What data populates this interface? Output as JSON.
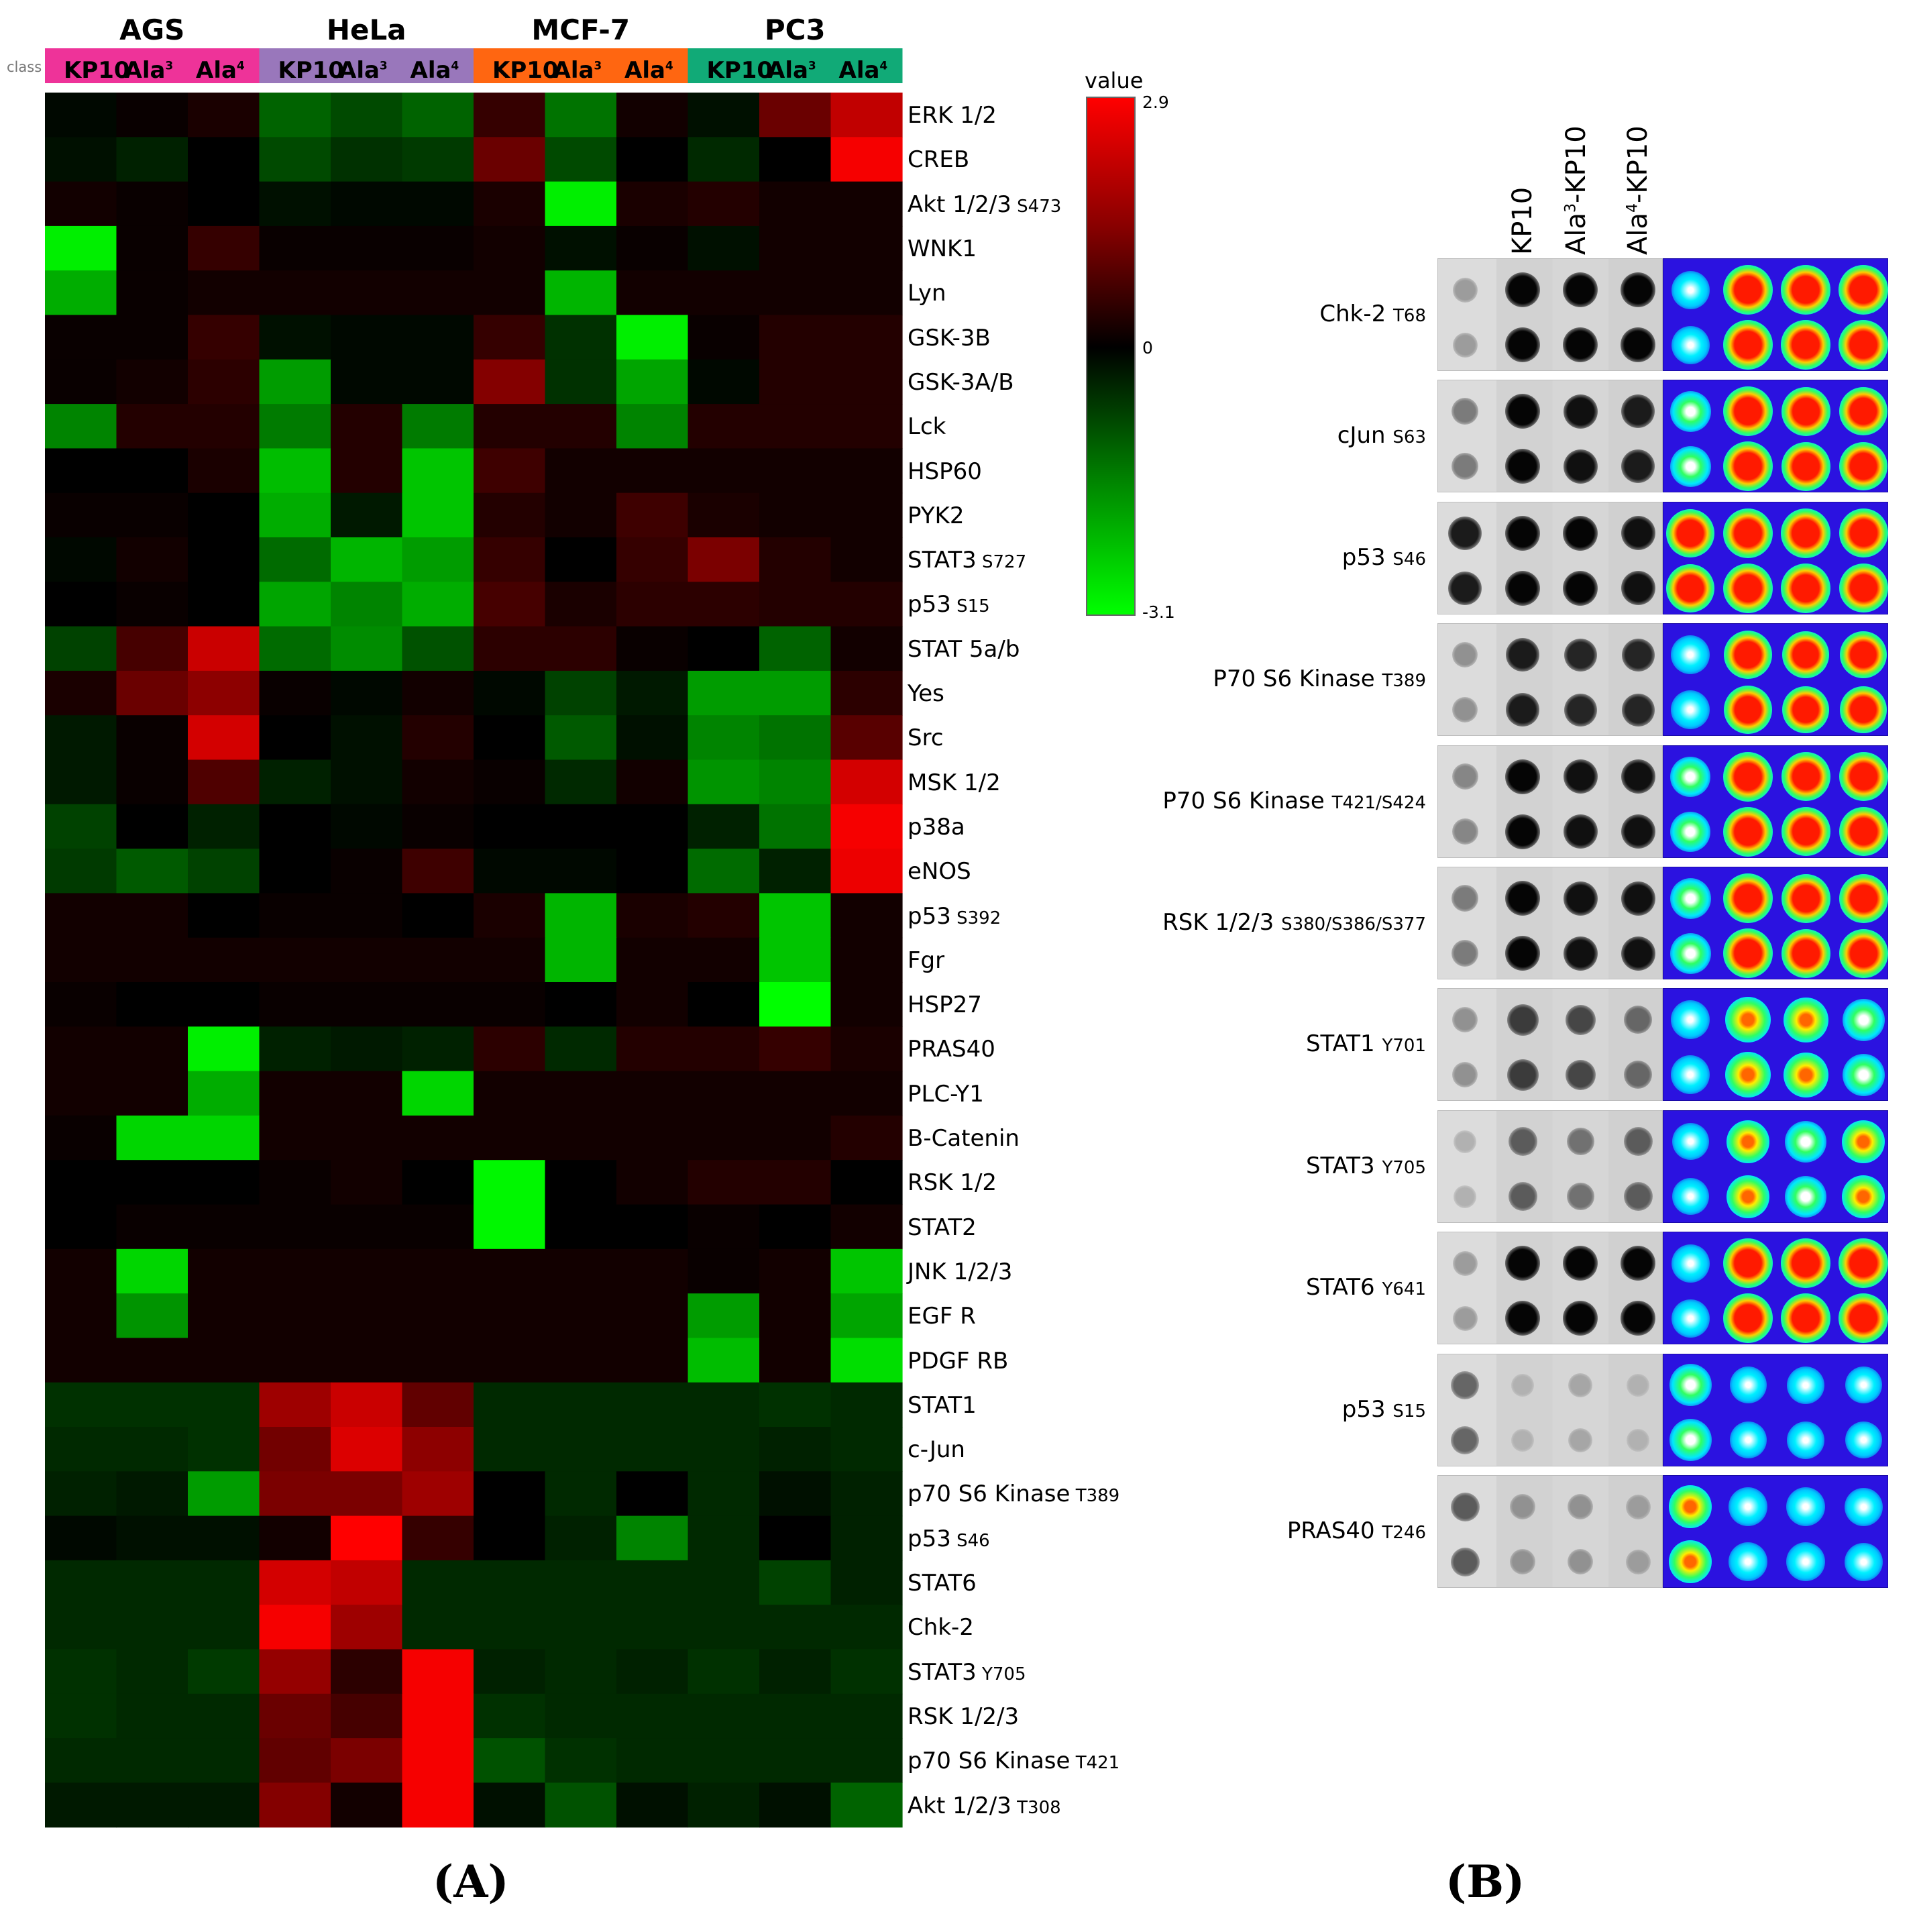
{
  "panel_labels": {
    "a": "(A)",
    "b": "(B)"
  },
  "chart_data": [
    {
      "type": "heatmap",
      "title": "",
      "class_label": "class",
      "groups": [
        {
          "name": "AGS",
          "color": "#ee3399"
        },
        {
          "name": "HeLa",
          "color": "#9977bb"
        },
        {
          "name": "MCF-7",
          "color": "#ff6611"
        },
        {
          "name": "PC3",
          "color": "#11aa77"
        }
      ],
      "columns": [
        {
          "group": "AGS",
          "base": "KP10",
          "sup": ""
        },
        {
          "group": "AGS",
          "base": "Ala",
          "sup": "3"
        },
        {
          "group": "AGS",
          "base": "Ala",
          "sup": "4"
        },
        {
          "group": "HeLa",
          "base": "KP10",
          "sup": ""
        },
        {
          "group": "HeLa",
          "base": "Ala",
          "sup": "3"
        },
        {
          "group": "HeLa",
          "base": "Ala",
          "sup": "4"
        },
        {
          "group": "MCF-7",
          "base": "KP10",
          "sup": ""
        },
        {
          "group": "MCF-7",
          "base": "Ala",
          "sup": "3"
        },
        {
          "group": "MCF-7",
          "base": "Ala",
          "sup": "4"
        },
        {
          "group": "PC3",
          "base": "KP10",
          "sup": ""
        },
        {
          "group": "PC3",
          "base": "Ala",
          "sup": "3"
        },
        {
          "group": "PC3",
          "base": "Ala",
          "sup": "4"
        }
      ],
      "rows": [
        {
          "name": "ERK 1/2",
          "site": ""
        },
        {
          "name": "CREB",
          "site": ""
        },
        {
          "name": "Akt 1/2/3",
          "site": "S473"
        },
        {
          "name": "WNK1",
          "site": ""
        },
        {
          "name": "Lyn",
          "site": ""
        },
        {
          "name": "GSK-3B",
          "site": ""
        },
        {
          "name": "GSK-3A/B",
          "site": ""
        },
        {
          "name": "Lck",
          "site": ""
        },
        {
          "name": "HSP60",
          "site": ""
        },
        {
          "name": "PYK2",
          "site": ""
        },
        {
          "name": "STAT3",
          "site": "S727"
        },
        {
          "name": "p53",
          "site": "S15"
        },
        {
          "name": "STAT 5a/b",
          "site": ""
        },
        {
          "name": "Yes",
          "site": ""
        },
        {
          "name": "Src",
          "site": ""
        },
        {
          "name": "MSK 1/2",
          "site": ""
        },
        {
          "name": "p38a",
          "site": ""
        },
        {
          "name": "eNOS",
          "site": ""
        },
        {
          "name": "p53",
          "site": "S392"
        },
        {
          "name": "Fgr",
          "site": ""
        },
        {
          "name": "HSP27",
          "site": ""
        },
        {
          "name": "PRAS40",
          "site": ""
        },
        {
          "name": "PLC-Y1",
          "site": ""
        },
        {
          "name": "B-Catenin",
          "site": ""
        },
        {
          "name": "RSK 1/2",
          "site": ""
        },
        {
          "name": "STAT2",
          "site": ""
        },
        {
          "name": "JNK 1/2/3",
          "site": ""
        },
        {
          "name": "EGF R",
          "site": ""
        },
        {
          "name": "PDGF RB",
          "site": ""
        },
        {
          "name": "STAT1",
          "site": ""
        },
        {
          "name": "c-Jun",
          "site": ""
        },
        {
          "name": "p70 S6 Kinase",
          "site": "T389"
        },
        {
          "name": "p53",
          "site": "S46"
        },
        {
          "name": "STAT6",
          "site": ""
        },
        {
          "name": "Chk-2",
          "site": ""
        },
        {
          "name": "STAT3",
          "site": "Y705"
        },
        {
          "name": "RSK 1/2/3",
          "site": ""
        },
        {
          "name": "p70 S6 Kinase",
          "site": "T421"
        },
        {
          "name": "Akt 1/2/3",
          "site": "T308"
        }
      ],
      "values": [
        [
          -0.1,
          0.1,
          0.3,
          -1.2,
          -0.9,
          -1.2,
          0.6,
          -1.4,
          0.2,
          -0.2,
          1.2,
          2.2
        ],
        [
          -0.2,
          -0.4,
          0,
          -0.9,
          -0.6,
          -0.7,
          1.2,
          -0.9,
          0,
          -0.5,
          0,
          2.8
        ],
        [
          0.2,
          0.1,
          0,
          -0.2,
          -0.1,
          -0.1,
          0.3,
          -2.9,
          0.3,
          0.4,
          0.2,
          0.2
        ],
        [
          -2.9,
          0.1,
          0.6,
          0.1,
          0.1,
          0.1,
          0.2,
          -0.2,
          0.1,
          -0.2,
          0.2,
          0.2
        ],
        [
          -2.1,
          0.1,
          0.2,
          0.2,
          0.2,
          0.2,
          0.2,
          -2.2,
          0.2,
          0.2,
          0.2,
          0.2
        ],
        [
          0.1,
          0.1,
          0.6,
          -0.2,
          -0.1,
          -0.1,
          0.6,
          -0.6,
          -2.9,
          0.1,
          0.4,
          0.4
        ],
        [
          0.1,
          0.2,
          0.5,
          -1.9,
          -0.1,
          -0.1,
          1.5,
          -0.6,
          -2.0,
          -0.1,
          0.4,
          0.4
        ],
        [
          -1.6,
          0.4,
          0.4,
          -1.5,
          0.4,
          -1.5,
          0.4,
          0.4,
          -1.6,
          0.4,
          0.4,
          0.4
        ],
        [
          0,
          0,
          0.3,
          -2.3,
          0.4,
          -2.4,
          0.7,
          0.2,
          0.2,
          0.2,
          0.2,
          0.2
        ],
        [
          0.1,
          0.1,
          0,
          -2.1,
          -0.3,
          -2.4,
          0.4,
          0.2,
          0.7,
          0.3,
          0.2,
          0.2
        ],
        [
          -0.1,
          0.2,
          0,
          -1.3,
          -2.2,
          -1.9,
          0.6,
          0,
          0.6,
          1.4,
          0.4,
          0.2
        ],
        [
          0,
          0.1,
          0,
          -2.0,
          -1.6,
          -2.1,
          0.8,
          0.3,
          0.5,
          0.5,
          0.4,
          0.4
        ],
        [
          -0.8,
          0.8,
          2.3,
          -1.3,
          -1.7,
          -1.0,
          0.5,
          0.5,
          0.1,
          0,
          -1.2,
          0.2
        ],
        [
          0.3,
          1.2,
          1.6,
          0.1,
          -0.1,
          0.2,
          -0.1,
          -0.8,
          -0.3,
          -1.9,
          -1.9,
          0.5
        ],
        [
          -0.3,
          0.1,
          2.4,
          0,
          -0.2,
          0.4,
          0,
          -1.1,
          -0.2,
          -1.6,
          -1.4,
          1.0
        ],
        [
          -0.3,
          0.1,
          0.9,
          -0.4,
          -0.2,
          0.2,
          0.1,
          -0.5,
          0.2,
          -1.8,
          -1.6,
          2.4
        ],
        [
          -0.8,
          0,
          -0.4,
          0,
          -0.1,
          0.1,
          0,
          0,
          0,
          -0.4,
          -1.4,
          2.8
        ],
        [
          -0.7,
          -1.1,
          -0.8,
          0,
          0.1,
          0.7,
          -0.1,
          -0.1,
          0,
          -1.3,
          -0.4,
          2.7
        ],
        [
          0.2,
          0.2,
          0,
          0.1,
          0.1,
          0,
          0.3,
          -2.2,
          0.3,
          0.4,
          -2.4,
          0.2
        ],
        [
          0.2,
          0.2,
          0.2,
          0.2,
          0.2,
          0.2,
          0.2,
          -2.2,
          0.2,
          0.2,
          -2.4,
          0.2
        ],
        [
          0.1,
          0,
          0,
          0.1,
          0.1,
          0.1,
          0.1,
          0,
          0.2,
          0,
          -3.1,
          0.2
        ],
        [
          0.2,
          0.2,
          -2.9,
          -0.4,
          -0.3,
          -0.4,
          0.5,
          -0.5,
          0.4,
          0.4,
          0.6,
          0.3
        ],
        [
          0.2,
          0.2,
          -2.1,
          0.2,
          0.2,
          -2.6,
          0.2,
          0.2,
          0.2,
          0.2,
          0.2,
          0.2
        ],
        [
          0.1,
          -2.6,
          -2.6,
          0.2,
          0.2,
          0.2,
          0.2,
          0.2,
          0.2,
          0.2,
          0.2,
          0.4
        ],
        [
          0,
          0,
          0,
          0.1,
          0.2,
          0,
          -3.0,
          0,
          0.2,
          0.4,
          0.4,
          0
        ],
        [
          0,
          0.1,
          0.1,
          0.1,
          0.1,
          0.1,
          -3.0,
          0,
          0,
          0.1,
          0,
          0.2
        ],
        [
          0.2,
          -2.6,
          0.2,
          0.2,
          0.2,
          0.2,
          0.2,
          0.2,
          0.2,
          0.1,
          0.2,
          -2.4
        ],
        [
          0.2,
          -1.8,
          0.2,
          0.2,
          0.2,
          0.2,
          0.2,
          0.2,
          0.2,
          -1.9,
          0.2,
          -2.0
        ],
        [
          0.2,
          0.2,
          0.2,
          0.2,
          0.2,
          0.2,
          0.2,
          0.2,
          0.2,
          -2.3,
          0.2,
          -2.7
        ],
        [
          -0.6,
          -0.6,
          -0.6,
          1.8,
          2.3,
          1.1,
          -0.5,
          -0.5,
          -0.5,
          -0.5,
          -0.6,
          -0.5
        ],
        [
          -0.5,
          -0.5,
          -0.6,
          1.3,
          2.5,
          1.6,
          -0.5,
          -0.5,
          -0.5,
          -0.5,
          -0.4,
          -0.5
        ],
        [
          -0.4,
          -0.3,
          -1.9,
          1.4,
          1.4,
          1.8,
          0,
          -0.5,
          0,
          -0.5,
          -0.2,
          -0.4
        ],
        [
          -0.1,
          -0.2,
          -0.2,
          0.2,
          2.9,
          0.6,
          0,
          -0.4,
          -1.6,
          -0.5,
          0,
          -0.4
        ],
        [
          -0.5,
          -0.5,
          -0.5,
          2.4,
          2.2,
          -0.5,
          -0.5,
          -0.5,
          -0.5,
          -0.5,
          -0.8,
          -0.4
        ],
        [
          -0.5,
          -0.5,
          -0.5,
          2.8,
          1.8,
          -0.5,
          -0.5,
          -0.5,
          -0.5,
          -0.5,
          -0.5,
          -0.5
        ],
        [
          -0.6,
          -0.5,
          -0.7,
          1.7,
          0.5,
          2.8,
          -0.4,
          -0.5,
          -0.4,
          -0.6,
          -0.4,
          -0.6
        ],
        [
          -0.6,
          -0.5,
          -0.5,
          1.2,
          0.8,
          2.8,
          -0.6,
          -0.5,
          -0.5,
          -0.5,
          -0.5,
          -0.5
        ],
        [
          -0.5,
          -0.5,
          -0.5,
          1.1,
          1.4,
          2.8,
          -1.0,
          -0.6,
          -0.5,
          -0.5,
          -0.5,
          -0.5
        ],
        [
          -0.3,
          -0.3,
          -0.3,
          1.5,
          0.2,
          2.8,
          -0.2,
          -1.0,
          -0.2,
          -0.4,
          -0.2,
          -1.2
        ]
      ],
      "legend": {
        "title": "value",
        "max_label": "2.9",
        "mid_label": "0",
        "min_label": "-3.1",
        "range": [
          -3.1,
          2.9
        ]
      }
    },
    {
      "type": "blot_array",
      "column_headers": [
        {
          "base": "KP10",
          "sup": "",
          "rest": ""
        },
        {
          "base": "Ala",
          "sup": "3",
          "rest": "-KP10"
        },
        {
          "base": "Ala",
          "sup": "4",
          "rest": "-KP10"
        }
      ],
      "targets": [
        {
          "name": "Chk-2",
          "site": "T68",
          "intensity": [
            0.3,
            1,
            1,
            1
          ]
        },
        {
          "name": "cJun",
          "site": "S63",
          "intensity": [
            0.45,
            1,
            0.95,
            0.9
          ]
        },
        {
          "name": "p53",
          "site": "S46",
          "intensity": [
            0.9,
            1,
            1,
            0.95
          ]
        },
        {
          "name": "P70 S6 Kinase",
          "site": "T389",
          "intensity": [
            0.35,
            0.9,
            0.85,
            0.85
          ]
        },
        {
          "name": "P70 S6 Kinase",
          "site": "T421/S424",
          "intensity": [
            0.4,
            1,
            0.95,
            0.95
          ]
        },
        {
          "name": "RSK 1/2/3",
          "site": "S380/S386/S377",
          "intensity": [
            0.45,
            1,
            0.95,
            0.95
          ]
        },
        {
          "name": "STAT1",
          "site": "Y701",
          "intensity": [
            0.35,
            0.75,
            0.7,
            0.55
          ]
        },
        {
          "name": "STAT3",
          "site": "Y705",
          "intensity": [
            0.2,
            0.6,
            0.5,
            0.6
          ]
        },
        {
          "name": "STAT6",
          "site": "Y641",
          "intensity": [
            0.3,
            1,
            1,
            1
          ]
        },
        {
          "name": "p53",
          "site": "S15",
          "intensity": [
            0.55,
            0.2,
            0.25,
            0.2
          ]
        },
        {
          "name": "PRAS40",
          "site": "T246",
          "intensity": [
            0.6,
            0.35,
            0.35,
            0.3
          ]
        }
      ]
    }
  ]
}
